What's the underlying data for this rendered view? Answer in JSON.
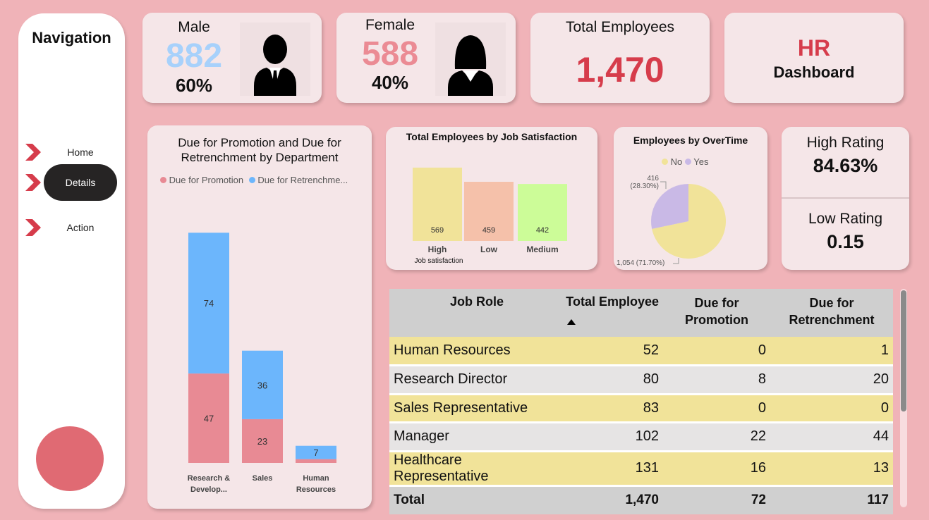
{
  "navigation": {
    "title": "Navigation",
    "items": [
      {
        "label": "Home"
      },
      {
        "label": "Details"
      },
      {
        "label": "Action"
      }
    ]
  },
  "kpis": {
    "male": {
      "label": "Male",
      "count": "882",
      "percent": "60%"
    },
    "female": {
      "label": "Female",
      "count": "588",
      "percent": "40%"
    },
    "total": {
      "label": "Total Employees",
      "value": "1,470"
    },
    "brand": {
      "line1": "HR",
      "line2": "Dashboard"
    },
    "high_rating": {
      "label": "High Rating",
      "value": "84.63%"
    },
    "low_rating": {
      "label": "Low Rating",
      "value": "0.15"
    }
  },
  "colors": {
    "background": "#f0b3b8",
    "promotion": "#e88a94",
    "retrenchment": "#6cb6fc",
    "male_blue": "#a7d1fb",
    "female_pink": "#eb8b94",
    "accent_red": "#d63c4b"
  },
  "promo_chart": {
    "title_line1": "Due for Promotion and Due for",
    "title_line2": "Retrenchment by Department",
    "legend": [
      "Due for Promotion",
      "Due for Retrenchme..."
    ],
    "categories": [
      [
        "Research &",
        "Develop..."
      ],
      [
        "Sales",
        ""
      ],
      [
        "Human",
        "Resources"
      ]
    ]
  },
  "satisfaction_chart": {
    "title": "Total Employees by Job Satisfaction",
    "xlabel": "Job satisfaction",
    "categories": [
      "High",
      "Low",
      "Medium"
    ]
  },
  "overtime_chart": {
    "title": "Employees by OverTime",
    "legend": [
      "No",
      "Yes"
    ],
    "labels": {
      "yes_line1": "416",
      "yes_line2": "(28.30%)",
      "no": "1,054 (71.70%)"
    }
  },
  "chart_data": [
    {
      "type": "bar",
      "stacked": true,
      "categories": [
        "Research & Develop...",
        "Sales",
        "Human Resources"
      ],
      "series": [
        {
          "name": "Due for Promotion",
          "values": [
            47,
            23,
            2
          ]
        },
        {
          "name": "Due for Retrenchme...",
          "values": [
            74,
            36,
            7
          ]
        }
      ],
      "title": "Due for Promotion and Due for Retrenchment by Department"
    },
    {
      "type": "bar",
      "categories": [
        "High",
        "Low",
        "Medium"
      ],
      "values": [
        569,
        459,
        442
      ],
      "title": "Total Employees by Job Satisfaction",
      "xlabel": "Job satisfaction"
    },
    {
      "type": "pie",
      "categories": [
        "No",
        "Yes"
      ],
      "values": [
        1054,
        416
      ],
      "title": "Employees by OverTime"
    }
  ],
  "table": {
    "headers": [
      "Job Role",
      "Total Employee",
      "Due for\nPromotion",
      "Due for\nRetrenchment"
    ],
    "rows": [
      [
        "Human Resources",
        "52",
        "0",
        "1"
      ],
      [
        "Research Director",
        "80",
        "8",
        "20"
      ],
      [
        "Sales Representative",
        "83",
        "0",
        "0"
      ],
      [
        "Manager",
        "102",
        "22",
        "44"
      ],
      [
        "Healthcare Representative",
        "131",
        "16",
        "13"
      ]
    ],
    "total": [
      "Total",
      "1,470",
      "72",
      "117"
    ]
  }
}
